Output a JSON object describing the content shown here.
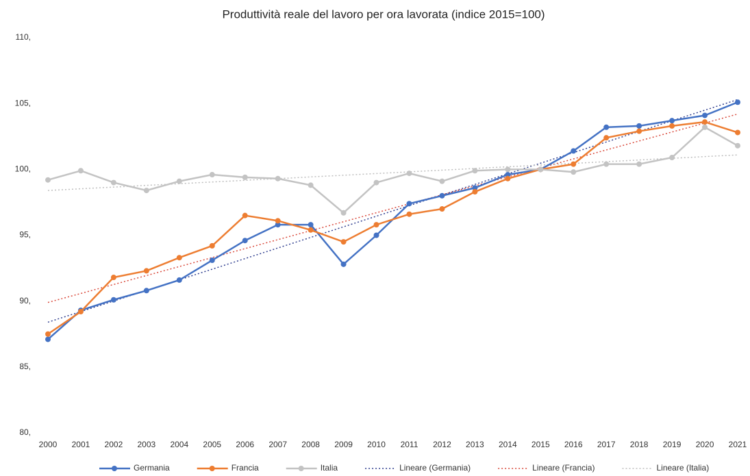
{
  "chart_data": {
    "type": "line",
    "title": "Produttività reale del lavoro per ora lavorata (indice 2015=100)",
    "x": [
      2000,
      2001,
      2002,
      2003,
      2004,
      2005,
      2006,
      2007,
      2008,
      2009,
      2010,
      2011,
      2012,
      2013,
      2014,
      2015,
      2016,
      2017,
      2018,
      2019,
      2020,
      2021
    ],
    "xlim": [
      2000,
      2021
    ],
    "xticks": [
      2000,
      2001,
      2002,
      2003,
      2004,
      2005,
      2006,
      2007,
      2008,
      2009,
      2010,
      2011,
      2012,
      2013,
      2014,
      2015,
      2016,
      2017,
      2018,
      2019,
      2020,
      2021
    ],
    "ylim": [
      80,
      110
    ],
    "yticks": [
      {
        "value": 80,
        "label": "80,"
      },
      {
        "value": 85,
        "label": "85,"
      },
      {
        "value": 90,
        "label": "90,"
      },
      {
        "value": 95,
        "label": "95,"
      },
      {
        "value": 100,
        "label": "100,"
      },
      {
        "value": 105,
        "label": "105,"
      },
      {
        "value": 110,
        "label": "110,"
      }
    ],
    "grid": false,
    "legend": "bottom",
    "series": [
      {
        "name": "Germania",
        "color": "#4472c4",
        "values": [
          87.1,
          89.3,
          90.1,
          90.8,
          91.6,
          93.1,
          94.6,
          95.8,
          95.8,
          92.8,
          95.0,
          97.4,
          98.0,
          98.6,
          99.6,
          100,
          101.4,
          103.2,
          103.3,
          103.7,
          104.1,
          105.1
        ]
      },
      {
        "name": "Francia",
        "color": "#ed7d31",
        "values": [
          87.5,
          89.2,
          91.8,
          92.3,
          93.3,
          94.2,
          96.5,
          96.1,
          95.4,
          94.5,
          95.8,
          96.6,
          97.0,
          98.3,
          99.3,
          100,
          100.4,
          102.4,
          102.9,
          103.3,
          103.6,
          102.8
        ]
      },
      {
        "name": "Italia",
        "color": "#c3c3c3",
        "values": [
          99.2,
          99.9,
          99.0,
          98.4,
          99.1,
          99.6,
          99.4,
          99.3,
          98.8,
          96.7,
          99.0,
          99.7,
          99.1,
          99.9,
          100.0,
          100,
          99.8,
          100.4,
          100.4,
          100.9,
          103.2,
          101.8
        ]
      }
    ],
    "trendlines": [
      {
        "name": "Lineare (Germania)",
        "color": "#2f3e8f",
        "x": [
          2000,
          2021
        ],
        "values": [
          88.4,
          105.3
        ]
      },
      {
        "name": "Lineare (Francia)",
        "color": "#d9483a",
        "x": [
          2000,
          2021
        ],
        "values": [
          89.9,
          104.2
        ]
      },
      {
        "name": "Lineare (Italia)",
        "color": "#bdbdbd",
        "x": [
          2000,
          2021
        ],
        "values": [
          98.4,
          101.1
        ]
      }
    ]
  }
}
